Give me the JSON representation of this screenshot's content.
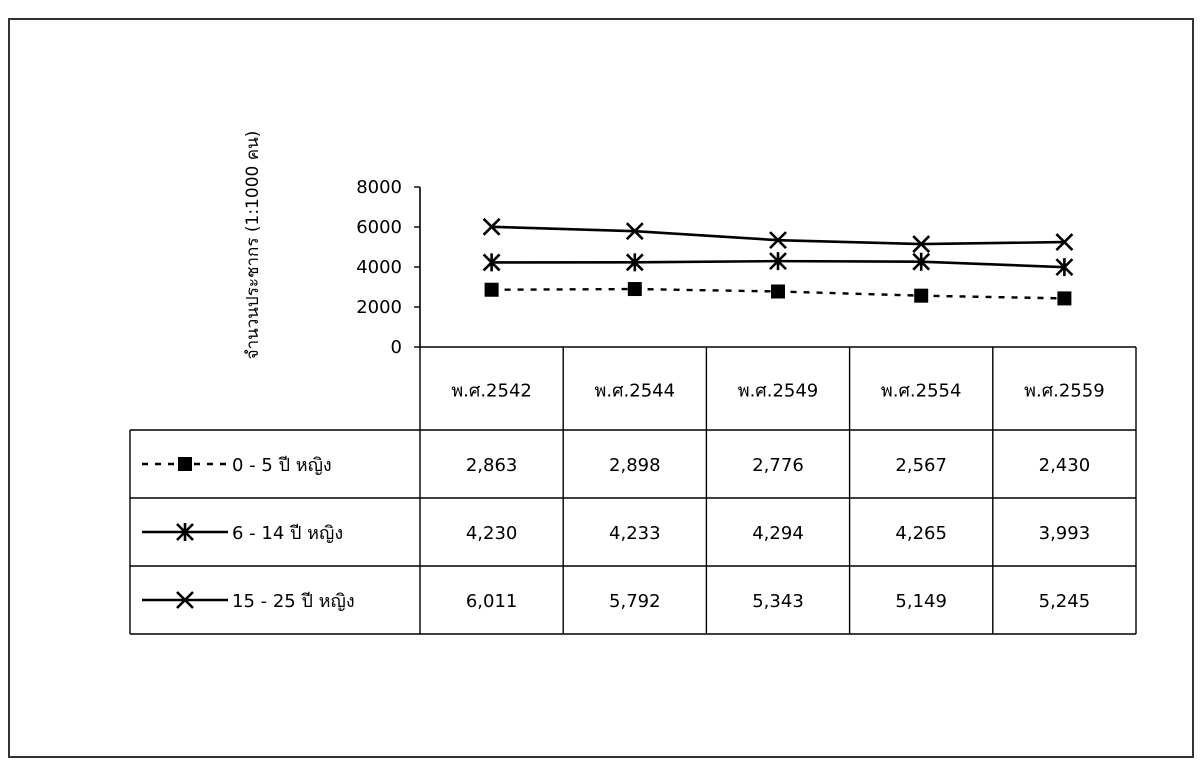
{
  "chart_data": {
    "type": "line",
    "title": "",
    "xlabel": "",
    "ylabel": "จำนวนประชากร (1:1000 คน)",
    "ylim": [
      0,
      8000
    ],
    "yticks": [
      "0",
      "2000",
      "4000",
      "6000",
      "8000"
    ],
    "categories": [
      "พ.ศ.2542",
      "พ.ศ.2544",
      "พ.ศ.2549",
      "พ.ศ.2554",
      "พ.ศ.2559"
    ],
    "grid": false,
    "legend": "data-table",
    "series": [
      {
        "name": "0 - 5 ปี หญิง",
        "values": [
          2863,
          2898,
          2776,
          2567,
          2430
        ],
        "labels": [
          "2,863",
          "2,898",
          "2,776",
          "2,567",
          "2,430"
        ],
        "marker": "square",
        "line": "dotted",
        "color": "#000000"
      },
      {
        "name": "6 - 14 ปี หญิง",
        "values": [
          4230,
          4233,
          4294,
          4265,
          3993
        ],
        "labels": [
          "4,230",
          "4,233",
          "4,294",
          "4,265",
          "3,993"
        ],
        "marker": "star",
        "line": "solid",
        "color": "#000000"
      },
      {
        "name": "15 - 25 ปี หญิง",
        "values": [
          6011,
          5792,
          5343,
          5149,
          5245
        ],
        "labels": [
          "6,011",
          "5,792",
          "5,343",
          "5,149",
          "5,245"
        ],
        "marker": "x",
        "line": "solid",
        "color": "#000000"
      }
    ]
  }
}
